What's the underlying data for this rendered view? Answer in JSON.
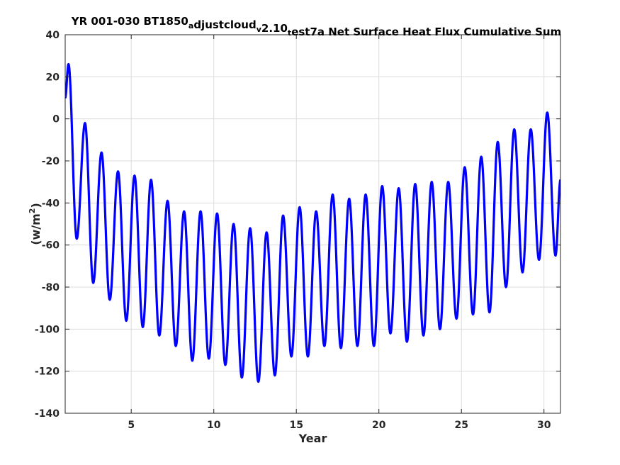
{
  "chart_data": {
    "type": "line",
    "title": {
      "parts": [
        {
          "text": "YR 001-030 BT1850",
          "sub": false
        },
        {
          "text": "a",
          "sub": true
        },
        {
          "text": "djustcloud",
          "sub": false
        },
        {
          "text": "v",
          "sub": true
        },
        {
          "text": "2.10",
          "sub": false
        },
        {
          "text": "t",
          "sub": true
        },
        {
          "text": "est7a Net Surface Heat Flux  Cumulative Sum",
          "sub": false
        }
      ]
    },
    "xlabel": "Year",
    "ylabel": {
      "base": "(w/m",
      "sup": "2",
      "close": ")"
    },
    "xlim": [
      1,
      31
    ],
    "ylim": [
      -140,
      40
    ],
    "xticks": [
      5,
      10,
      15,
      20,
      25,
      30
    ],
    "yticks": [
      -140,
      -120,
      -100,
      -80,
      -60,
      -40,
      -20,
      0,
      20,
      40
    ],
    "grid": true,
    "line_color": "#0000ff",
    "series": [
      {
        "period_years": 1,
        "extrema": [
          {
            "x": 1.0,
            "y": 10
          },
          {
            "x": 1.2,
            "y": 26
          },
          {
            "x": 1.7,
            "y": -57
          },
          {
            "x": 2.2,
            "y": -2
          },
          {
            "x": 2.7,
            "y": -78
          },
          {
            "x": 3.2,
            "y": -16
          },
          {
            "x": 3.7,
            "y": -86
          },
          {
            "x": 4.2,
            "y": -25
          },
          {
            "x": 4.7,
            "y": -96
          },
          {
            "x": 5.2,
            "y": -27
          },
          {
            "x": 5.7,
            "y": -99
          },
          {
            "x": 6.2,
            "y": -29
          },
          {
            "x": 6.7,
            "y": -103
          },
          {
            "x": 7.2,
            "y": -39
          },
          {
            "x": 7.7,
            "y": -108
          },
          {
            "x": 8.2,
            "y": -44
          },
          {
            "x": 8.7,
            "y": -115
          },
          {
            "x": 9.2,
            "y": -44
          },
          {
            "x": 9.7,
            "y": -114
          },
          {
            "x": 10.2,
            "y": -45
          },
          {
            "x": 10.7,
            "y": -117
          },
          {
            "x": 11.2,
            "y": -50
          },
          {
            "x": 11.7,
            "y": -123
          },
          {
            "x": 12.2,
            "y": -52
          },
          {
            "x": 12.7,
            "y": -125
          },
          {
            "x": 13.2,
            "y": -54
          },
          {
            "x": 13.7,
            "y": -122
          },
          {
            "x": 14.2,
            "y": -46
          },
          {
            "x": 14.7,
            "y": -113
          },
          {
            "x": 15.2,
            "y": -42
          },
          {
            "x": 15.7,
            "y": -113
          },
          {
            "x": 16.2,
            "y": -44
          },
          {
            "x": 16.7,
            "y": -108
          },
          {
            "x": 17.2,
            "y": -36
          },
          {
            "x": 17.7,
            "y": -109
          },
          {
            "x": 18.2,
            "y": -38
          },
          {
            "x": 18.7,
            "y": -108
          },
          {
            "x": 19.2,
            "y": -36
          },
          {
            "x": 19.7,
            "y": -108
          },
          {
            "x": 20.2,
            "y": -32
          },
          {
            "x": 20.7,
            "y": -102
          },
          {
            "x": 21.2,
            "y": -33
          },
          {
            "x": 21.7,
            "y": -106
          },
          {
            "x": 22.2,
            "y": -31
          },
          {
            "x": 22.7,
            "y": -103
          },
          {
            "x": 23.2,
            "y": -30
          },
          {
            "x": 23.7,
            "y": -100
          },
          {
            "x": 24.2,
            "y": -30
          },
          {
            "x": 24.7,
            "y": -95
          },
          {
            "x": 25.2,
            "y": -23
          },
          {
            "x": 25.7,
            "y": -93
          },
          {
            "x": 26.2,
            "y": -18
          },
          {
            "x": 26.7,
            "y": -92
          },
          {
            "x": 27.2,
            "y": -11
          },
          {
            "x": 27.7,
            "y": -80
          },
          {
            "x": 28.2,
            "y": -5
          },
          {
            "x": 28.7,
            "y": -73
          },
          {
            "x": 29.2,
            "y": -5
          },
          {
            "x": 29.7,
            "y": -67
          },
          {
            "x": 30.2,
            "y": 3
          },
          {
            "x": 30.7,
            "y": -65
          },
          {
            "x": 31.0,
            "y": -29
          }
        ]
      }
    ]
  }
}
